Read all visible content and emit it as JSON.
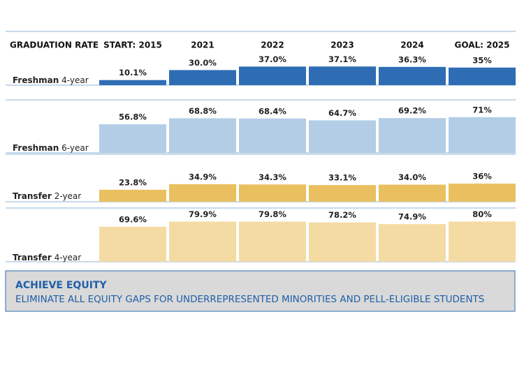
{
  "header": {
    "row_label": "GRADUATION RATE",
    "columns": [
      "START: 2015",
      "2021",
      "2022",
      "2023",
      "2024",
      "GOAL: 2025"
    ]
  },
  "chart_data": [
    {
      "type": "bar",
      "label_bold": "Freshman",
      "label_rest": "4-year",
      "color": "#2e6db4",
      "values": [
        10.1,
        30.0,
        37.0,
        37.1,
        36.3,
        35
      ],
      "value_labels": [
        "10.1%",
        "30.0%",
        "37.0%",
        "37.1%",
        "36.3%",
        "35%"
      ]
    },
    {
      "type": "bar",
      "label_bold": "Freshman",
      "label_rest": "6-year",
      "color": "#b3cde6",
      "values": [
        56.8,
        68.8,
        68.4,
        64.7,
        69.2,
        71
      ],
      "value_labels": [
        "56.8%",
        "68.8%",
        "68.4%",
        "64.7%",
        "69.2%",
        "71%"
      ]
    },
    {
      "type": "bar",
      "label_bold": "Transfer",
      "label_rest": "2-year",
      "color": "#e9bf5f",
      "values": [
        23.8,
        34.9,
        34.3,
        33.1,
        34.0,
        36
      ],
      "value_labels": [
        "23.8%",
        "34.9%",
        "34.3%",
        "33.1%",
        "34.0%",
        "36%"
      ]
    },
    {
      "type": "bar",
      "label_bold": "Transfer",
      "label_rest": "4-year",
      "color": "#f4dba4",
      "values": [
        69.6,
        79.9,
        79.8,
        78.2,
        74.9,
        80
      ],
      "value_labels": [
        "69.6%",
        "79.9%",
        "79.8%",
        "78.2%",
        "74.9%",
        "80%"
      ]
    }
  ],
  "footer": {
    "title": "ACHIEVE EQUITY",
    "text": "ELIMINATE ALL EQUITY GAPS FOR UNDERREPRESENTED MINORITIES AND PELL-ELIGIBLE STUDENTS"
  }
}
